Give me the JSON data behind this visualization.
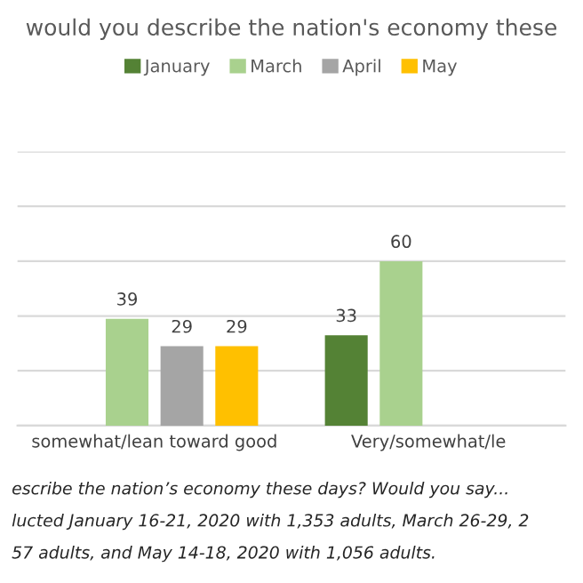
{
  "chart_data": {
    "type": "bar",
    "title": "would you describe the nation's economy these",
    "categories": [
      "somewhat/lean toward good",
      "Very/somewhat/le"
    ],
    "series": [
      {
        "name": "January",
        "color": "#548235",
        "values": [
          null,
          33
        ]
      },
      {
        "name": "March",
        "color": "#a9d18e",
        "values": [
          39,
          60
        ]
      },
      {
        "name": "April",
        "color": "#a5a5a5",
        "values": [
          29,
          null
        ]
      },
      {
        "name": "May",
        "color": "#ffc000",
        "values": [
          29,
          null
        ]
      }
    ],
    "ylim": [
      0,
      100
    ],
    "yticks": [
      {
        "value": 0,
        "label": null
      },
      {
        "value": 20,
        "label": null
      },
      {
        "value": 40,
        "label": null
      },
      {
        "value": 60,
        "label": null
      },
      {
        "value": 80,
        "label": null
      },
      {
        "value": 100,
        "label": null
      }
    ],
    "tick_labels": "x",
    "grid": "y",
    "legend": "top",
    "data_labels": true,
    "annotations": [
      "escribe the nation’s economy these days? Would you say...",
      "lucted January 16-21, 2020 with 1,353 adults, March 26-29, 2",
      "57 adults, and May 14-18, 2020 with 1,056 adults."
    ]
  }
}
